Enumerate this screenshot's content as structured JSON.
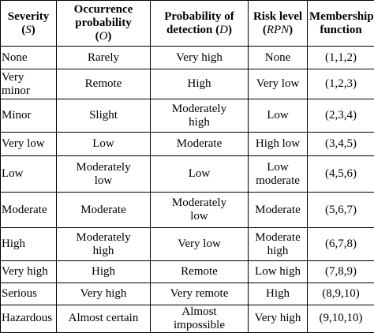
{
  "headers": {
    "severity": {
      "label": "Severity",
      "symbol": "S"
    },
    "occurrence": {
      "line1": "Occurrence",
      "line2": "probability",
      "symbol": "O"
    },
    "detection": {
      "line1": "Probability of",
      "line2": "detection",
      "symbol": "D"
    },
    "risk": {
      "line1": "Risk level",
      "symbol": "RPN"
    },
    "membership": {
      "line1": "Membership",
      "line2": "function"
    }
  },
  "rows": [
    {
      "severity": "None",
      "occurrence": "Rarely",
      "detection": "Very high",
      "risk": "None",
      "membership": "(1,1,2)"
    },
    {
      "severity": "Very\nminor",
      "occurrence": "Remote",
      "detection": "High",
      "risk": "Very low",
      "membership": "(1,2,3)"
    },
    {
      "severity": "Minor",
      "occurrence": "Slight",
      "detection": "Moderately\nhigh",
      "risk": "Low",
      "membership": "(2,3,4)"
    },
    {
      "severity": "Very low",
      "occurrence": "Low",
      "detection": "Moderate",
      "risk": "High low",
      "membership": "(3,4,5)"
    },
    {
      "severity": "Low",
      "occurrence": "Moderately\nlow",
      "detection": "Low",
      "risk": "Low\nmoderate",
      "membership": "(4,5,6)"
    },
    {
      "severity": "Moderate",
      "occurrence": "Moderate",
      "detection": "Moderately\nlow",
      "risk": "Moderate",
      "membership": "(5,6,7)"
    },
    {
      "severity": "High",
      "occurrence": "Moderately\nhigh",
      "detection": "Very low",
      "risk": "Moderate\nhigh",
      "membership": "(6,7,8)"
    },
    {
      "severity": "Very high",
      "occurrence": "High",
      "detection": "Remote",
      "risk": "Low high",
      "membership": "(7,8,9)"
    },
    {
      "severity": "Serious",
      "occurrence": "Very high",
      "detection": "Very remote",
      "risk": "High",
      "membership": "(8,9,10)"
    },
    {
      "severity": "Hazardous",
      "occurrence": "Almost certain",
      "detection": "Almost\nimpossible",
      "risk": "Very high",
      "membership": "(9,10,10)"
    }
  ]
}
